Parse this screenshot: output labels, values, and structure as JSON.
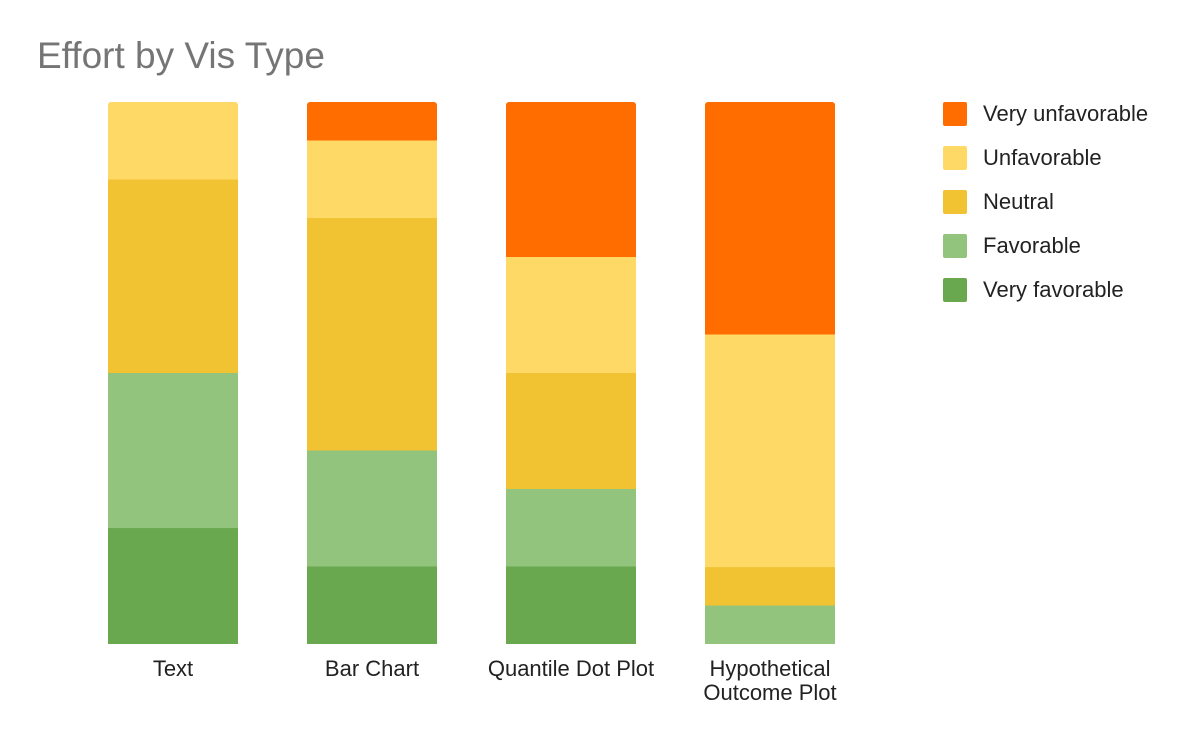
{
  "chart_data": {
    "type": "bar",
    "stacked": true,
    "percent": true,
    "title": "Effort by Vis Type",
    "xlabel": "",
    "ylabel": "",
    "ylim": [
      0,
      100
    ],
    "grid": false,
    "legend_position": "right",
    "categories": [
      [
        "Text"
      ],
      [
        "Bar Chart"
      ],
      [
        "Quantile Dot Plot"
      ],
      [
        "Hypothetical",
        "Outcome Plot"
      ]
    ],
    "series": [
      {
        "name": "Very favorable",
        "color": "#6aa84f",
        "values": [
          21.4,
          14.3,
          14.3,
          0
        ]
      },
      {
        "name": "Favorable",
        "color": "#93c47d",
        "values": [
          28.6,
          21.4,
          14.3,
          7.1
        ]
      },
      {
        "name": "Neutral",
        "color": "#f1c232",
        "values": [
          35.7,
          42.9,
          21.4,
          7.1
        ]
      },
      {
        "name": "Unfavorable",
        "color": "#ffd966",
        "values": [
          14.3,
          14.3,
          21.4,
          42.9
        ]
      },
      {
        "name": "Very unfavorable",
        "color": "#ff6d01",
        "values": [
          0,
          7.1,
          28.6,
          42.9
        ]
      }
    ],
    "legend_order": [
      "Very unfavorable",
      "Unfavorable",
      "Neutral",
      "Favorable",
      "Very favorable"
    ]
  }
}
